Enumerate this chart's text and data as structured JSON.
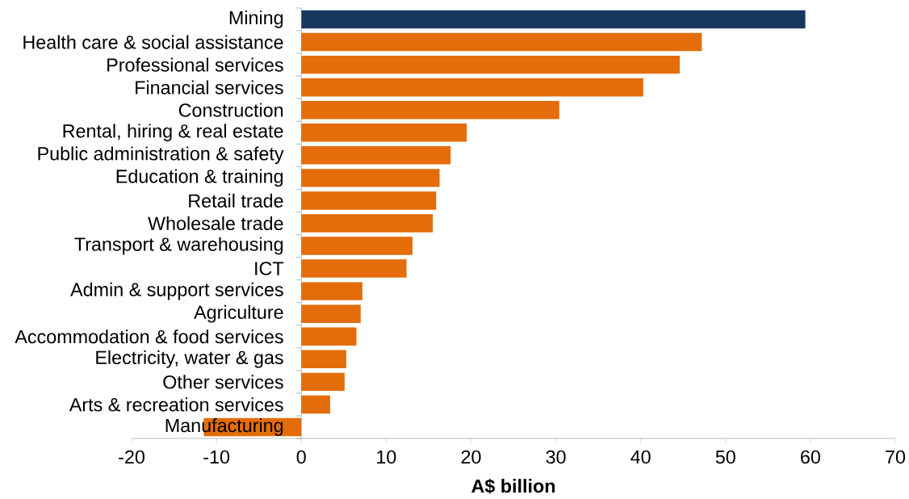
{
  "chart_data": {
    "type": "bar",
    "orientation": "horizontal",
    "xlabel": "A$ billion",
    "categories": [
      "Mining",
      "Health care & social assistance",
      "Professional services",
      "Financial services",
      "Construction",
      "Rental, hiring & real estate",
      "Public administration & safety",
      "Education & training",
      "Retail trade",
      "Wholesale trade",
      "Transport & warehousing",
      "ICT",
      "Admin & support services",
      "Agriculture",
      "Accommodation & food services",
      "Electricity, water & gas",
      "Other services",
      "Arts & recreation services",
      "Manufacturing"
    ],
    "values": [
      59.4,
      47.2,
      44.6,
      40.3,
      30.4,
      19.5,
      17.6,
      16.3,
      15.9,
      15.5,
      13.1,
      12.4,
      7.2,
      7.0,
      6.5,
      5.3,
      5.1,
      3.4,
      -11.5
    ],
    "colors": [
      "#17375e",
      "#e46c0a",
      "#e46c0a",
      "#e46c0a",
      "#e46c0a",
      "#e46c0a",
      "#e46c0a",
      "#e46c0a",
      "#e46c0a",
      "#e46c0a",
      "#e46c0a",
      "#e46c0a",
      "#e46c0a",
      "#e46c0a",
      "#e46c0a",
      "#e46c0a",
      "#e46c0a",
      "#e46c0a",
      "#e46c0a"
    ],
    "xlim": [
      -20,
      70
    ],
    "xticks": [
      -20,
      -10,
      0,
      10,
      20,
      30,
      40,
      50,
      60,
      70
    ]
  }
}
